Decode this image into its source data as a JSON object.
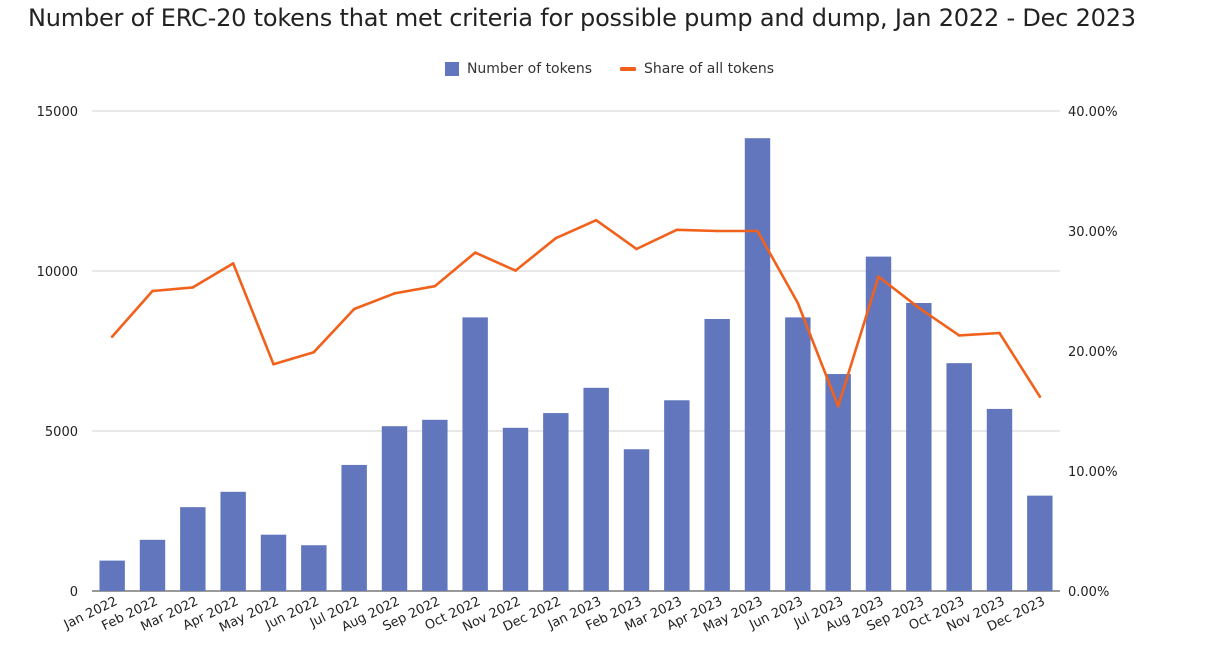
{
  "chart_data": {
    "type": "bar",
    "title": "Number of ERC-20 tokens that met criteria for possible pump and dump, Jan 2022 - Dec 2023",
    "categories": [
      "Jan 2022",
      "Feb 2022",
      "Mar 2022",
      "Apr 2022",
      "May 2022",
      "Jun 2022",
      "Jul 2022",
      "Aug 2022",
      "Sep 2022",
      "Oct 2022",
      "Nov 2022",
      "Dec 2022",
      "Jan 2023",
      "Feb 2023",
      "Mar 2023",
      "Apr 2023",
      "May 2023",
      "Jun 2023",
      "Jul 2023",
      "Aug 2023",
      "Sep 2023",
      "Oct 2023",
      "Nov 2023",
      "Dec 2023"
    ],
    "series": [
      {
        "name": "Number of tokens",
        "kind": "bar",
        "axis": "left",
        "color": "#6176bd",
        "values": [
          950,
          1600,
          2620,
          3100,
          1760,
          1430,
          3940,
          5150,
          5350,
          8550,
          5100,
          5560,
          6350,
          4430,
          5960,
          8500,
          14150,
          8550,
          6780,
          10450,
          9000,
          7120,
          5690,
          2980
        ]
      },
      {
        "name": "Share of all tokens",
        "kind": "line",
        "axis": "right",
        "color": "#f2611c",
        "values": [
          21.2,
          25.0,
          25.3,
          27.3,
          18.9,
          19.9,
          23.5,
          24.8,
          25.4,
          28.2,
          26.7,
          29.4,
          30.9,
          28.5,
          30.1,
          30.0,
          30.0,
          24.0,
          15.4,
          26.2,
          23.6,
          21.3,
          21.5,
          16.2
        ]
      }
    ],
    "ylim": [
      0,
      15000
    ],
    "yticks": [
      0,
      5000,
      10000,
      15000
    ],
    "y2lim": [
      0,
      40
    ],
    "y2ticks": [
      "0.00%",
      "10.00%",
      "20.00%",
      "30.00%",
      "40.00%"
    ],
    "grid": true,
    "legend_position": "top-center",
    "xlabel": "",
    "ylabel": ""
  }
}
